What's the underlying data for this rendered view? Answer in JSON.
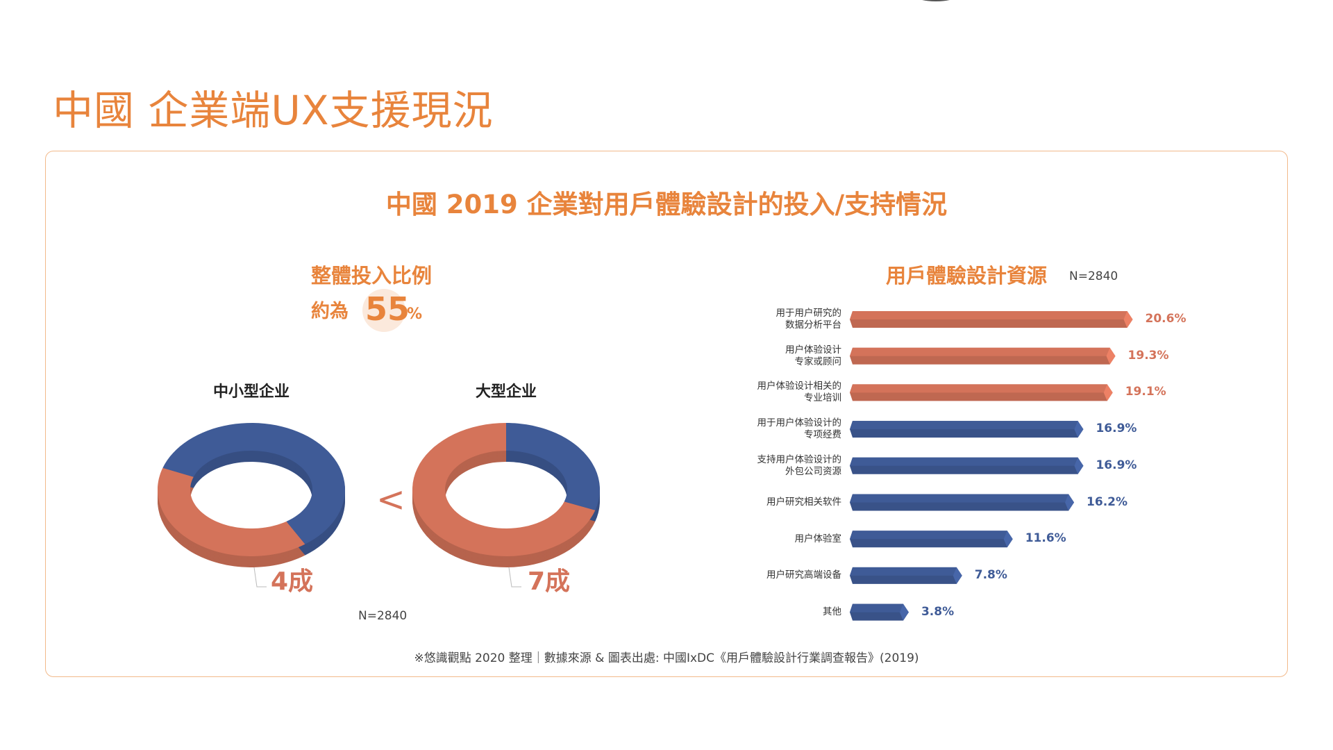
{
  "page_title": "中國 企業端UX支援現況",
  "chart_title": "中國 2019 企業對用戶體驗設計的投入/支持情況",
  "colors": {
    "accent": "#e8843c",
    "orange_bar": "#d4735a",
    "blue_bar": "#3f5b97"
  },
  "overall": {
    "title": "整體投入比例",
    "approx_label": "約為",
    "value": "55",
    "unit": "%"
  },
  "comparison_symbol": "<",
  "chart_data": [
    {
      "type": "pie",
      "donut": true,
      "title": "中小型企业",
      "slices": [
        {
          "label": "4成",
          "value": 40,
          "color": "#d4735a"
        },
        {
          "value": 60,
          "color": "#3f5b97"
        }
      ],
      "annotation": "4成"
    },
    {
      "type": "pie",
      "donut": true,
      "title": "大型企业",
      "slices": [
        {
          "label": "7成",
          "value": 70,
          "color": "#d4735a"
        },
        {
          "value": 30,
          "color": "#3f5b97"
        }
      ],
      "annotation": "7成"
    },
    {
      "type": "bar",
      "orientation": "horizontal",
      "title": "用戶體驗設計資源",
      "note": "N=2840",
      "categories": [
        "用于用户研究的\n数据分析平台",
        "用户体验设计\n专家或顾问",
        "用户体验设计相关的\n专业培训",
        "用于用户体验设计的\n专项经费",
        "支持用户体验设计的\n外包公司资源",
        "用户研究相关软件",
        "用户体验室",
        "用户研究高端设备",
        "其他"
      ],
      "values": [
        20.6,
        19.3,
        19.1,
        16.9,
        16.9,
        16.2,
        11.6,
        7.8,
        3.8
      ],
      "value_labels": [
        "20.6%",
        "19.3%",
        "19.1%",
        "16.9%",
        "16.9%",
        "16.2%",
        "11.6%",
        "7.8%",
        "3.8%"
      ],
      "colors": [
        "#d4735a",
        "#d4735a",
        "#d4735a",
        "#3f5b97",
        "#3f5b97",
        "#3f5b97",
        "#3f5b97",
        "#3f5b97",
        "#3f5b97"
      ]
    }
  ],
  "donut_note": "N=2840",
  "footer": "※悠識觀點 2020 整理｜數據來源 & 圖表出處: 中國IxDC《用戶體驗設計行業調查報告》(2019)"
}
